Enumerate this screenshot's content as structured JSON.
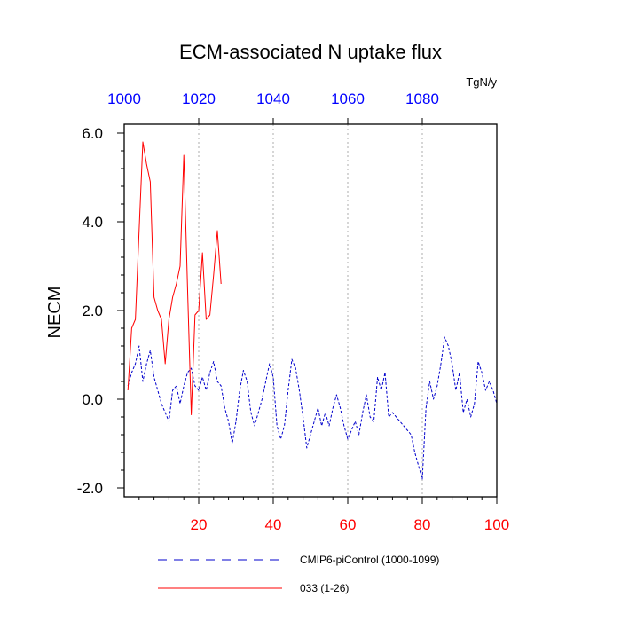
{
  "chart_data": {
    "type": "line",
    "title": "ECM-associated N uptake flux",
    "unit_label": "TgN/y",
    "ylabel": "NECM",
    "xlim": [
      0,
      100
    ],
    "ylim": [
      -2.2,
      6.2
    ],
    "x_ticks": [
      20,
      40,
      60,
      80,
      100
    ],
    "x_tick_labels": [
      "20",
      "40",
      "60",
      "80",
      "100"
    ],
    "x_tick_color": "#ff0000",
    "top_ticks": [
      20,
      40,
      60,
      80
    ],
    "top_tick_labels": [
      "1000",
      "1020",
      "1040",
      "1060",
      "1080"
    ],
    "top_tick_positions": [
      0,
      20,
      40,
      60,
      80
    ],
    "top_tick_color": "#0000ff",
    "y_ticks": [
      -2,
      0,
      2,
      4,
      6
    ],
    "y_tick_labels": [
      "-2.0",
      "0.0",
      "2.0",
      "4.0",
      "6.0"
    ],
    "grid_x": [
      20,
      40,
      60,
      80
    ],
    "legend_position": "bottom",
    "series": [
      {
        "name": "CMIP6-piControl (1000-1099)",
        "color": "#0000cc",
        "style": "dashed",
        "x": [
          1,
          2,
          3,
          4,
          5,
          6,
          7,
          8,
          9,
          10,
          11,
          12,
          13,
          14,
          15,
          16,
          17,
          18,
          19,
          20,
          21,
          22,
          23,
          24,
          25,
          26,
          27,
          28,
          29,
          30,
          31,
          32,
          33,
          34,
          35,
          36,
          37,
          38,
          39,
          40,
          41,
          42,
          43,
          44,
          45,
          46,
          47,
          48,
          49,
          50,
          51,
          52,
          53,
          54,
          55,
          56,
          57,
          58,
          59,
          60,
          61,
          62,
          63,
          64,
          65,
          66,
          67,
          68,
          69,
          70,
          71,
          72,
          73,
          74,
          75,
          76,
          77,
          78,
          79,
          80,
          81,
          82,
          83,
          84,
          85,
          86,
          87,
          88,
          89,
          90,
          91,
          92,
          93,
          94,
          95,
          96,
          97,
          98,
          99,
          100
        ],
        "values": [
          0.3,
          0.6,
          0.8,
          1.2,
          0.4,
          0.8,
          1.1,
          0.5,
          0.2,
          -0.1,
          -0.3,
          -0.5,
          0.2,
          0.3,
          -0.1,
          0.3,
          0.6,
          0.7,
          0.3,
          0.2,
          0.5,
          0.2,
          0.6,
          0.85,
          0.4,
          0.3,
          -0.2,
          -0.5,
          -1.0,
          -0.5,
          0.2,
          0.65,
          0.4,
          -0.3,
          -0.6,
          -0.3,
          0.0,
          0.4,
          0.8,
          0.5,
          -0.6,
          -0.9,
          -0.6,
          0.2,
          0.9,
          0.7,
          0.2,
          -0.4,
          -1.1,
          -0.8,
          -0.5,
          -0.2,
          -0.6,
          -0.3,
          -0.6,
          -0.2,
          0.1,
          -0.2,
          -0.6,
          -0.9,
          -0.7,
          -0.5,
          -0.8,
          -0.3,
          0.1,
          -0.4,
          -0.5,
          0.5,
          0.2,
          0.6,
          -0.4,
          -0.3,
          -0.4,
          -0.5,
          -0.6,
          -0.7,
          -0.8,
          -1.2,
          -1.5,
          -1.8,
          -0.2,
          0.4,
          0.0,
          0.3,
          0.8,
          1.4,
          1.2,
          0.8,
          0.2,
          0.6,
          -0.3,
          0.0,
          -0.4,
          -0.1,
          0.85,
          0.6,
          0.2,
          0.4,
          0.2,
          -0.1
        ]
      },
      {
        "name": "033 (1-26)",
        "color": "#ff0000",
        "style": "solid",
        "x": [
          1,
          2,
          3,
          4,
          5,
          6,
          7,
          8,
          9,
          10,
          11,
          12,
          13,
          14,
          15,
          16,
          17,
          18,
          19,
          20,
          21,
          22,
          23,
          24,
          25,
          26
        ],
        "values": [
          0.2,
          1.6,
          1.8,
          3.8,
          5.8,
          5.3,
          4.9,
          2.3,
          2.0,
          1.8,
          0.8,
          1.8,
          2.3,
          2.6,
          3.0,
          5.5,
          2.5,
          -0.35,
          1.9,
          2.0,
          3.3,
          1.8,
          1.9,
          2.8,
          3.8,
          2.6
        ]
      }
    ]
  }
}
